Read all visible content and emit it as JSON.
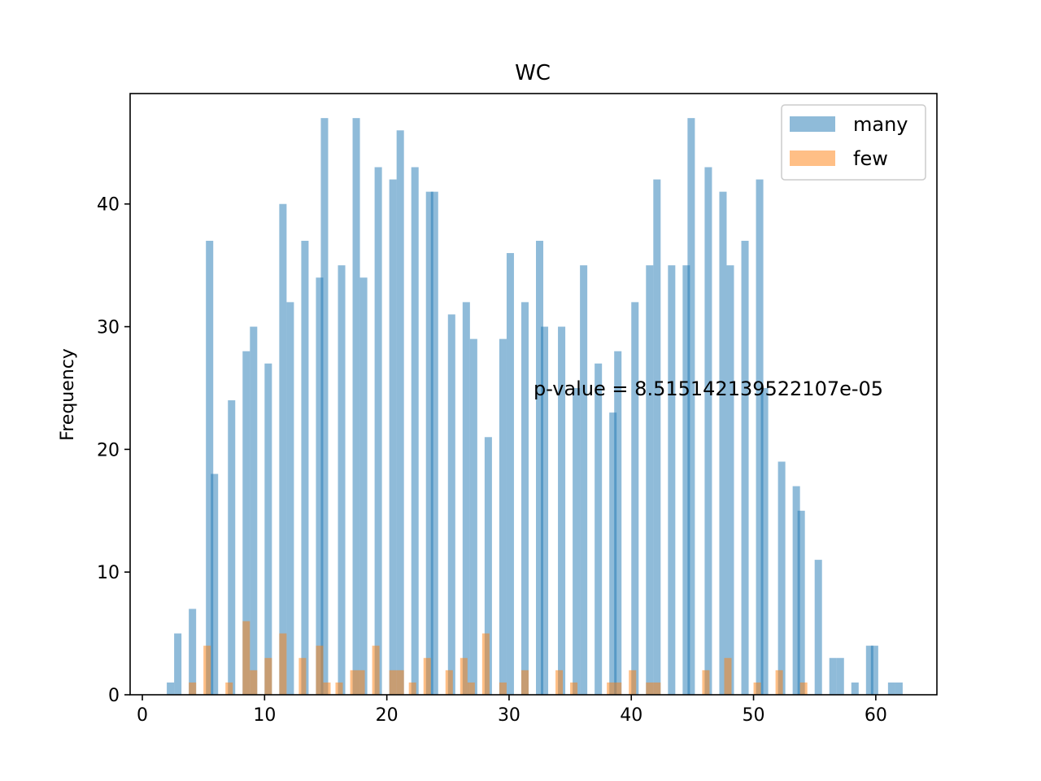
{
  "chart_data": {
    "type": "bar",
    "title": "WC",
    "xlabel": "",
    "ylabel": "Frequency",
    "xlim": [
      -1,
      65
    ],
    "ylim": [
      0,
      49
    ],
    "xticks": [
      0,
      10,
      20,
      30,
      40,
      50,
      60
    ],
    "yticks": [
      0,
      10,
      20,
      30,
      40
    ],
    "bin_width": 0.6,
    "legend": {
      "placement": "top-right"
    },
    "annotation": {
      "text": "p-value = 8.515142139522107e-05",
      "x": 32,
      "y": 25
    },
    "series": [
      {
        "name": "many",
        "color": "#1f77b4",
        "opacity": 0.5,
        "bins": [
          [
            2,
            1
          ],
          [
            2.6,
            5
          ],
          [
            3.8,
            7
          ],
          [
            5.2,
            37
          ],
          [
            5.6,
            18
          ],
          [
            7,
            24
          ],
          [
            8.2,
            28
          ],
          [
            8.8,
            30
          ],
          [
            10,
            27
          ],
          [
            11.2,
            40
          ],
          [
            11.8,
            32
          ],
          [
            13,
            37
          ],
          [
            14.2,
            34
          ],
          [
            14.6,
            47
          ],
          [
            16,
            35
          ],
          [
            17.2,
            47
          ],
          [
            17.8,
            34
          ],
          [
            19,
            43
          ],
          [
            20.2,
            42
          ],
          [
            20.8,
            46
          ],
          [
            22,
            43
          ],
          [
            23.2,
            41
          ],
          [
            23.6,
            41
          ],
          [
            25,
            31
          ],
          [
            26.2,
            32
          ],
          [
            26.8,
            29
          ],
          [
            28,
            21
          ],
          [
            29.2,
            29
          ],
          [
            29.8,
            36
          ],
          [
            31,
            32
          ],
          [
            32.2,
            37
          ],
          [
            32.6,
            30
          ],
          [
            34,
            30
          ],
          [
            35.2,
            25
          ],
          [
            35.8,
            35
          ],
          [
            37,
            27
          ],
          [
            38.2,
            23
          ],
          [
            38.6,
            28
          ],
          [
            40,
            32
          ],
          [
            41.2,
            35
          ],
          [
            41.8,
            42
          ],
          [
            43,
            35
          ],
          [
            44.2,
            35
          ],
          [
            44.6,
            47
          ],
          [
            46,
            43
          ],
          [
            47.2,
            41
          ],
          [
            47.8,
            35
          ],
          [
            49,
            37
          ],
          [
            50.2,
            42
          ],
          [
            50.6,
            25
          ],
          [
            52,
            19
          ],
          [
            53.2,
            17
          ],
          [
            53.6,
            15
          ],
          [
            55,
            11
          ],
          [
            56.2,
            3
          ],
          [
            56.8,
            3
          ],
          [
            58,
            1
          ],
          [
            59.2,
            4
          ],
          [
            59.6,
            4
          ],
          [
            61,
            1
          ],
          [
            61.6,
            1
          ]
        ]
      },
      {
        "name": "few",
        "color": "#ff7f0e",
        "opacity": 0.5,
        "bins": [
          [
            3.8,
            1
          ],
          [
            5,
            4
          ],
          [
            6.8,
            1
          ],
          [
            8.2,
            6
          ],
          [
            8.8,
            2
          ],
          [
            10,
            3
          ],
          [
            11.2,
            5
          ],
          [
            12.8,
            3
          ],
          [
            14.2,
            4
          ],
          [
            14.8,
            1
          ],
          [
            15.8,
            1
          ],
          [
            17,
            2
          ],
          [
            17.6,
            2
          ],
          [
            18.8,
            4
          ],
          [
            20.2,
            2
          ],
          [
            20.8,
            2
          ],
          [
            21.8,
            1
          ],
          [
            23,
            3
          ],
          [
            24.8,
            2
          ],
          [
            26,
            3
          ],
          [
            26.6,
            1
          ],
          [
            27.8,
            5
          ],
          [
            29.2,
            1
          ],
          [
            31,
            2
          ],
          [
            33.8,
            2
          ],
          [
            35,
            1
          ],
          [
            38,
            1
          ],
          [
            38.6,
            1
          ],
          [
            39.8,
            2
          ],
          [
            41.2,
            1
          ],
          [
            41.8,
            1
          ],
          [
            45.8,
            2
          ],
          [
            47.6,
            3
          ],
          [
            50,
            1
          ],
          [
            51.8,
            2
          ],
          [
            53.8,
            1
          ]
        ]
      }
    ]
  }
}
